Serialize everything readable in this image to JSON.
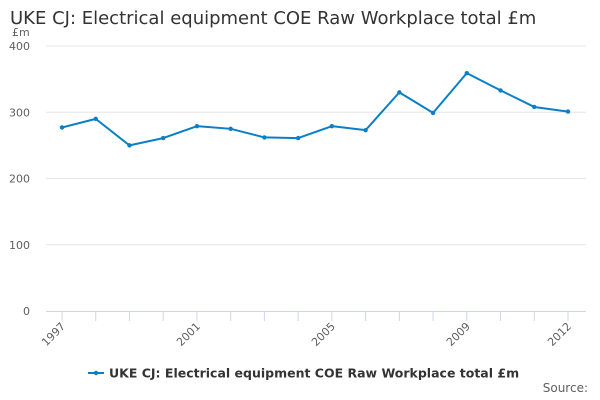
{
  "chart_data": {
    "type": "line",
    "title": "UKE CJ: Electrical equipment COE Raw Workplace total £m",
    "ylabel": "£m",
    "xlabel": "",
    "ylim": [
      0,
      400
    ],
    "yticks": [
      "0",
      "100",
      "200",
      "300",
      "400"
    ],
    "x": [
      1997,
      1998,
      1999,
      2000,
      2001,
      2002,
      2003,
      2004,
      2005,
      2006,
      2007,
      2008,
      2009,
      2010,
      2011,
      2012
    ],
    "xtick_labels": [
      "1997",
      "2001",
      "2005",
      "2009",
      "2012"
    ],
    "series": [
      {
        "name": "UKE CJ: Electrical equipment COE Raw Workplace total £m",
        "color": "#0a7fc6",
        "values": [
          277,
          290,
          250,
          261,
          279,
          275,
          262,
          261,
          279,
          273,
          330,
          299,
          359,
          333,
          308,
          301
        ]
      }
    ],
    "grid": true,
    "legend": "bottom-center",
    "source_label": "Source:"
  }
}
